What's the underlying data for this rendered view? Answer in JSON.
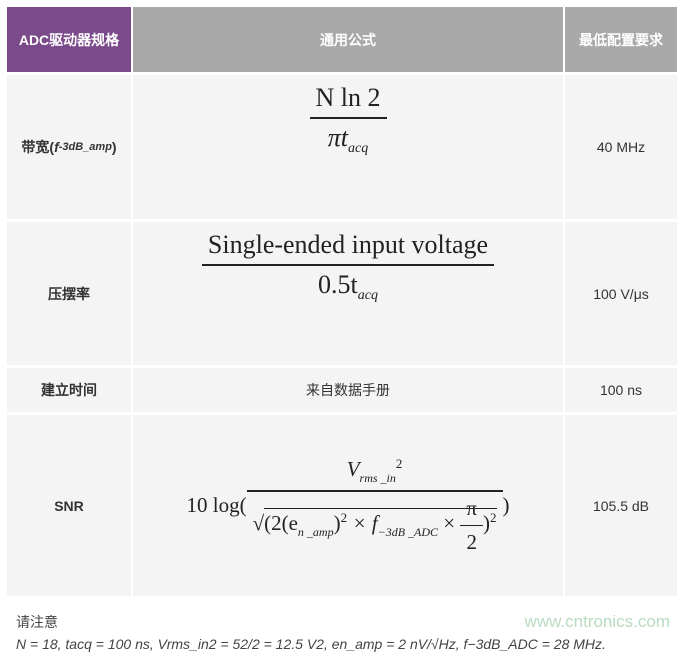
{
  "header": {
    "col1": "ADC驱动器规格",
    "col2": "通用公式",
    "col3": "最低配置要求"
  },
  "rows": [
    {
      "spec": "带宽(",
      "spec_sym": "f",
      "spec_sub": "-3dB_amp",
      "spec_end": ")",
      "formula": {
        "num": "N ln 2",
        "den_a": "πt",
        "den_sub": "acq"
      },
      "min": "40 MHz"
    },
    {
      "spec": "压摆率",
      "formula": {
        "num": "Single-ended input voltage",
        "den_a": "0.5t",
        "den_sub": "acq"
      },
      "min": "100 V/μs"
    },
    {
      "spec": "建立时间",
      "formula_text": "来自数据手册",
      "min": "100 ns"
    },
    {
      "spec": "SNR",
      "formula": {
        "prefix": "10 log(",
        "num": "V",
        "num_sub": "rms _in",
        "num_sup": "2",
        "den_a": "(2(e",
        "den_sub1": "n _amp",
        "den_b": ")",
        "den_sup1": "2",
        "den_c": " × f",
        "den_sub2": "−3dB _ADC",
        "den_d": " × ",
        "pi": "π",
        "two": "2",
        "den_sup2": "2",
        "suffix": ")"
      },
      "min": "105.5 dB"
    }
  ],
  "notes": {
    "title": "请注意",
    "line": "N = 18, tacq = 100 ns, Vrms_in2 = 52/2 = 12.5 V2, en_amp = 2 nV/√Hz, f−3dB_ADC = 28 MHz."
  },
  "watermark": "www.cntronics.com"
}
